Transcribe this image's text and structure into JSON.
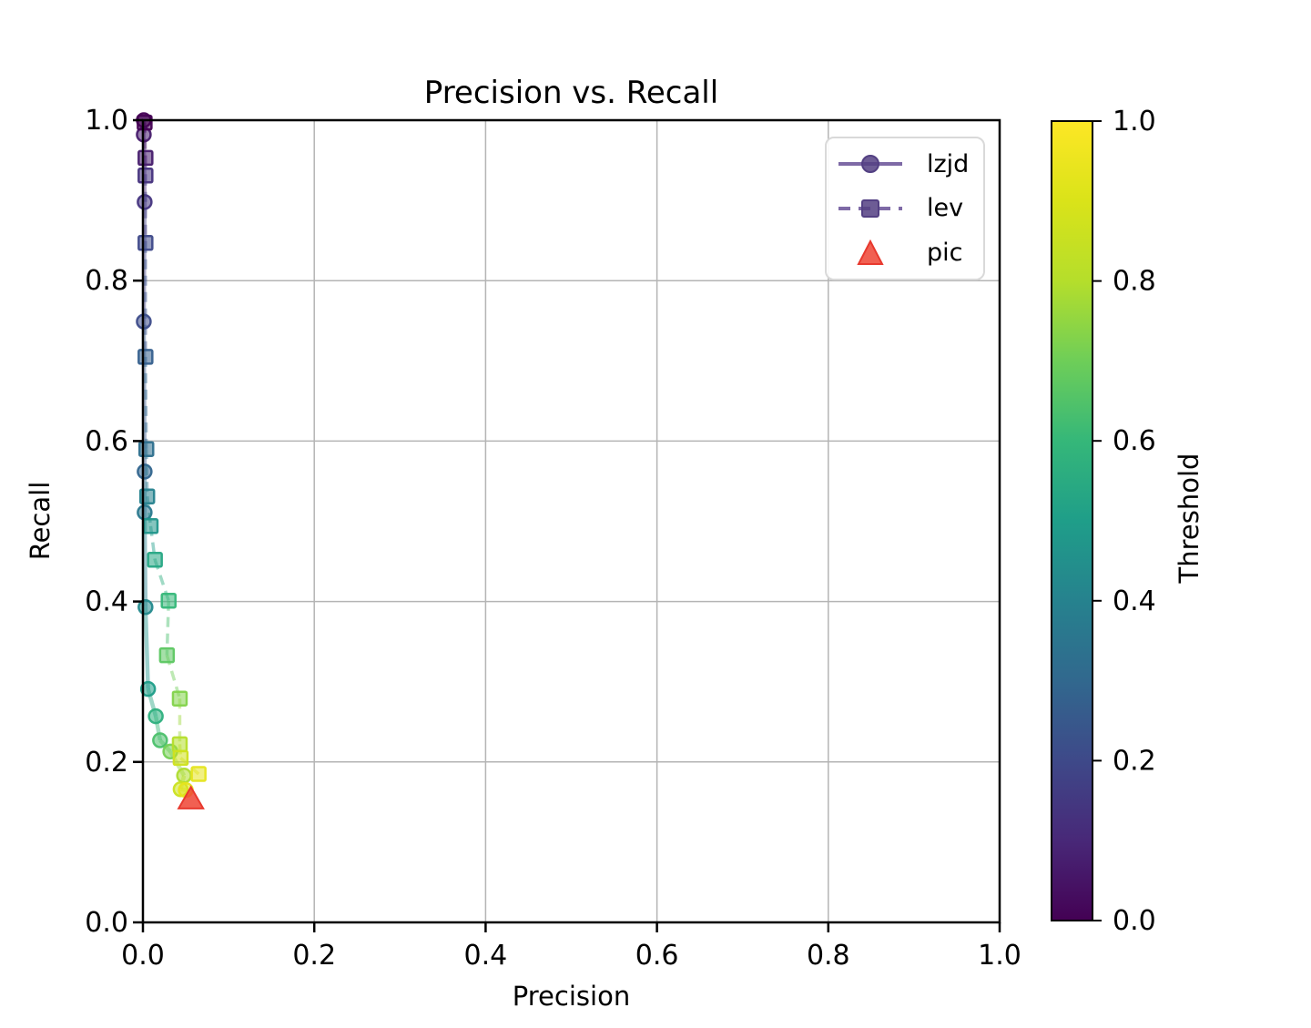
{
  "figure": {
    "title": "Precision vs. Recall",
    "xlabel": "Precision",
    "ylabel": "Recall",
    "background": "#ffffff"
  },
  "axes": {
    "xtick_labels": [
      "0.0",
      "0.2",
      "0.4",
      "0.6",
      "0.8",
      "1.0"
    ],
    "ytick_labels": [
      "0.0",
      "0.2",
      "0.4",
      "0.6",
      "0.8",
      "1.0"
    ],
    "grid_color": "#b4b4b4",
    "spine_color": "#000000",
    "text_color": "#000000"
  },
  "legend": {
    "items": [
      {
        "label": "lzjd",
        "handle": "solid-line-circle"
      },
      {
        "label": "lev",
        "handle": "dashed-line-square"
      },
      {
        "label": "pic",
        "handle": "triangle"
      }
    ],
    "handle_line_color": "#7e6aa6",
    "handle_marker_color": "#534083",
    "triangle_color": "#ee4434",
    "triangle_edge_color": "#e8392e"
  },
  "colorbar": {
    "label": "Threshold",
    "tick_labels": [
      "0.0",
      "0.2",
      "0.4",
      "0.6",
      "0.8",
      "1.0"
    ],
    "range": [
      0,
      1
    ],
    "colormap": "viridis"
  },
  "colors": {
    "viridis_anchors": [
      {
        "t": 0.0,
        "c": "#440154"
      },
      {
        "t": 0.1,
        "c": "#482878"
      },
      {
        "t": 0.2,
        "c": "#3e4989"
      },
      {
        "t": 0.3,
        "c": "#31688e"
      },
      {
        "t": 0.4,
        "c": "#26828e"
      },
      {
        "t": 0.5,
        "c": "#1f9e89"
      },
      {
        "t": 0.6,
        "c": "#35b779"
      },
      {
        "t": 0.7,
        "c": "#6ece58"
      },
      {
        "t": 0.8,
        "c": "#b5de2b"
      },
      {
        "t": 0.9,
        "c": "#dae319"
      },
      {
        "t": 1.0,
        "c": "#fde725"
      }
    ]
  },
  "chart_data": {
    "type": "line",
    "title": "Precision vs. Recall",
    "xlabel": "Precision",
    "ylabel": "Recall",
    "xlim": [
      0,
      1
    ],
    "ylim": [
      0,
      1
    ],
    "xticks": [
      0.0,
      0.2,
      0.4,
      0.6,
      0.8,
      1.0
    ],
    "yticks": [
      0.0,
      0.2,
      0.4,
      0.6,
      0.8,
      1.0
    ],
    "grid": true,
    "legend_position": "upper right",
    "colorbar_label": "Threshold",
    "point_color_encodes": "threshold (viridis colormap, 0 to 1)",
    "series": [
      {
        "name": "lzjd",
        "marker": "circle",
        "line_style": "solid",
        "points": [
          {
            "precision": 0.001,
            "recall": 1.0,
            "threshold": 0.0
          },
          {
            "precision": 0.001,
            "recall": 0.982,
            "threshold": 0.07
          },
          {
            "precision": 0.002,
            "recall": 0.898,
            "threshold": 0.14
          },
          {
            "precision": 0.001,
            "recall": 0.749,
            "threshold": 0.21
          },
          {
            "precision": 0.002,
            "recall": 0.562,
            "threshold": 0.29
          },
          {
            "precision": 0.002,
            "recall": 0.511,
            "threshold": 0.36
          },
          {
            "precision": 0.003,
            "recall": 0.393,
            "threshold": 0.43
          },
          {
            "precision": 0.006,
            "recall": 0.291,
            "threshold": 0.5
          },
          {
            "precision": 0.015,
            "recall": 0.257,
            "threshold": 0.57
          },
          {
            "precision": 0.02,
            "recall": 0.227,
            "threshold": 0.64
          },
          {
            "precision": 0.032,
            "recall": 0.213,
            "threshold": 0.71
          },
          {
            "precision": 0.048,
            "recall": 0.183,
            "threshold": 0.79
          },
          {
            "precision": 0.044,
            "recall": 0.166,
            "threshold": 0.86
          },
          {
            "precision": 0.05,
            "recall": 0.165,
            "threshold": 0.93
          }
        ]
      },
      {
        "name": "lev",
        "marker": "square",
        "line_style": "dashed",
        "points": [
          {
            "precision": 0.002,
            "recall": 0.997,
            "threshold": 0.0
          },
          {
            "precision": 0.003,
            "recall": 0.953,
            "threshold": 0.07
          },
          {
            "precision": 0.003,
            "recall": 0.931,
            "threshold": 0.13
          },
          {
            "precision": 0.003,
            "recall": 0.847,
            "threshold": 0.2
          },
          {
            "precision": 0.003,
            "recall": 0.705,
            "threshold": 0.27
          },
          {
            "precision": 0.004,
            "recall": 0.59,
            "threshold": 0.33
          },
          {
            "precision": 0.005,
            "recall": 0.531,
            "threshold": 0.4
          },
          {
            "precision": 0.009,
            "recall": 0.494,
            "threshold": 0.47
          },
          {
            "precision": 0.014,
            "recall": 0.452,
            "threshold": 0.53
          },
          {
            "precision": 0.03,
            "recall": 0.401,
            "threshold": 0.6
          },
          {
            "precision": 0.028,
            "recall": 0.333,
            "threshold": 0.67
          },
          {
            "precision": 0.043,
            "recall": 0.279,
            "threshold": 0.73
          },
          {
            "precision": 0.043,
            "recall": 0.222,
            "threshold": 0.8
          },
          {
            "precision": 0.044,
            "recall": 0.205,
            "threshold": 0.87
          },
          {
            "precision": 0.065,
            "recall": 0.185,
            "threshold": 0.93
          }
        ]
      },
      {
        "name": "pic",
        "marker": "triangle",
        "line_style": "none",
        "color": "#ee4434",
        "points": [
          {
            "precision": 0.056,
            "recall": 0.154
          }
        ]
      }
    ]
  }
}
